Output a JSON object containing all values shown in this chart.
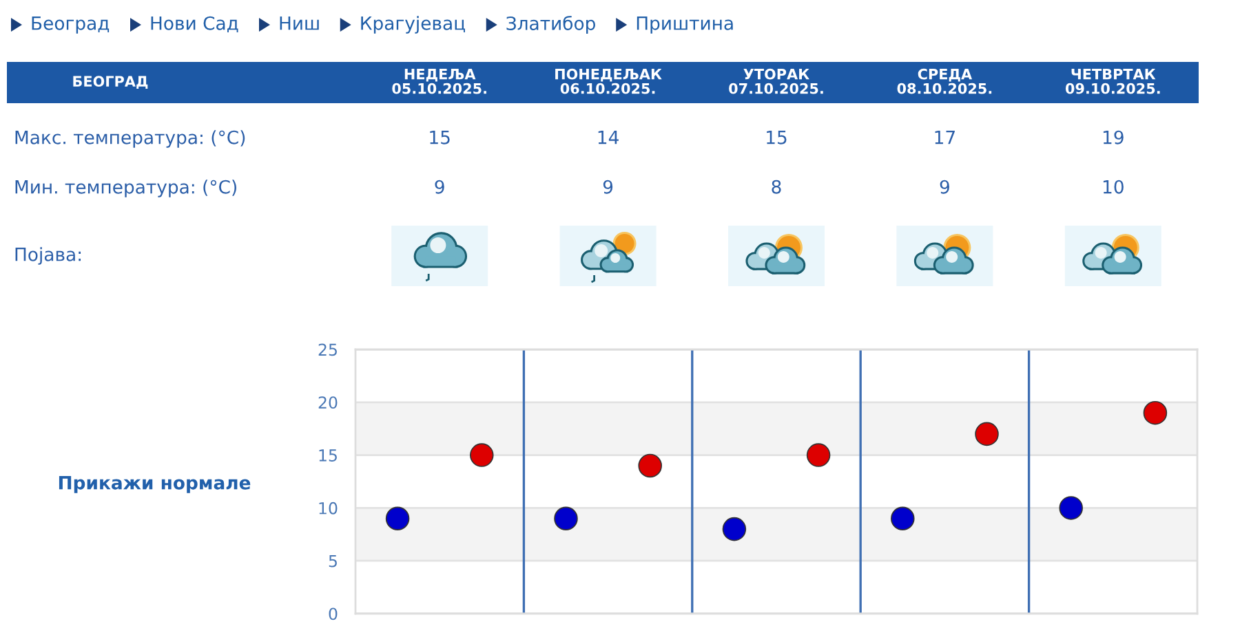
{
  "chart_data": {
    "type": "scatter",
    "title": "БЕОГРАД",
    "categories": [
      null,
      null,
      null,
      null,
      null
    ],
    "series": [
      {
        "color": "#dd0000",
        "values": [
          15,
          14,
          15,
          17,
          19
        ]
      },
      {
        "color": "#0000cc",
        "values": [
          9,
          9,
          8,
          9,
          10
        ]
      }
    ],
    "data_labels": true,
    "ylim": [
      0,
      25
    ],
    "yticks": [
      0,
      5,
      10,
      15,
      20,
      25
    ],
    "tick_labels": "y",
    "grid": true,
    "marker": "circle",
    "bands": [
      {
        "axis": "y",
        "from": 5,
        "to": 10,
        "color": "#f3f3f3"
      },
      {
        "axis": "y",
        "from": 15,
        "to": 20,
        "color": "#f3f3f3"
      }
    ],
    "annotations": [
      "Београд",
      "Нови Сад",
      "Ниш",
      "Крагујевац",
      "Златибор",
      "Приштина",
      "НЕДЕЉА\n05.10.2025.",
      "ПОНЕДЕЉАК\n06.10.2025.",
      "УТОРАК\n07.10.2025.",
      "СРЕДА\n08.10.2025.",
      "ЧЕТВРТАК\n09.10.2025.",
      "Макс. температура: (°C)",
      "Мин. температура: (°C)",
      "Појава:",
      "Прикажи нормале"
    ]
  }
}
